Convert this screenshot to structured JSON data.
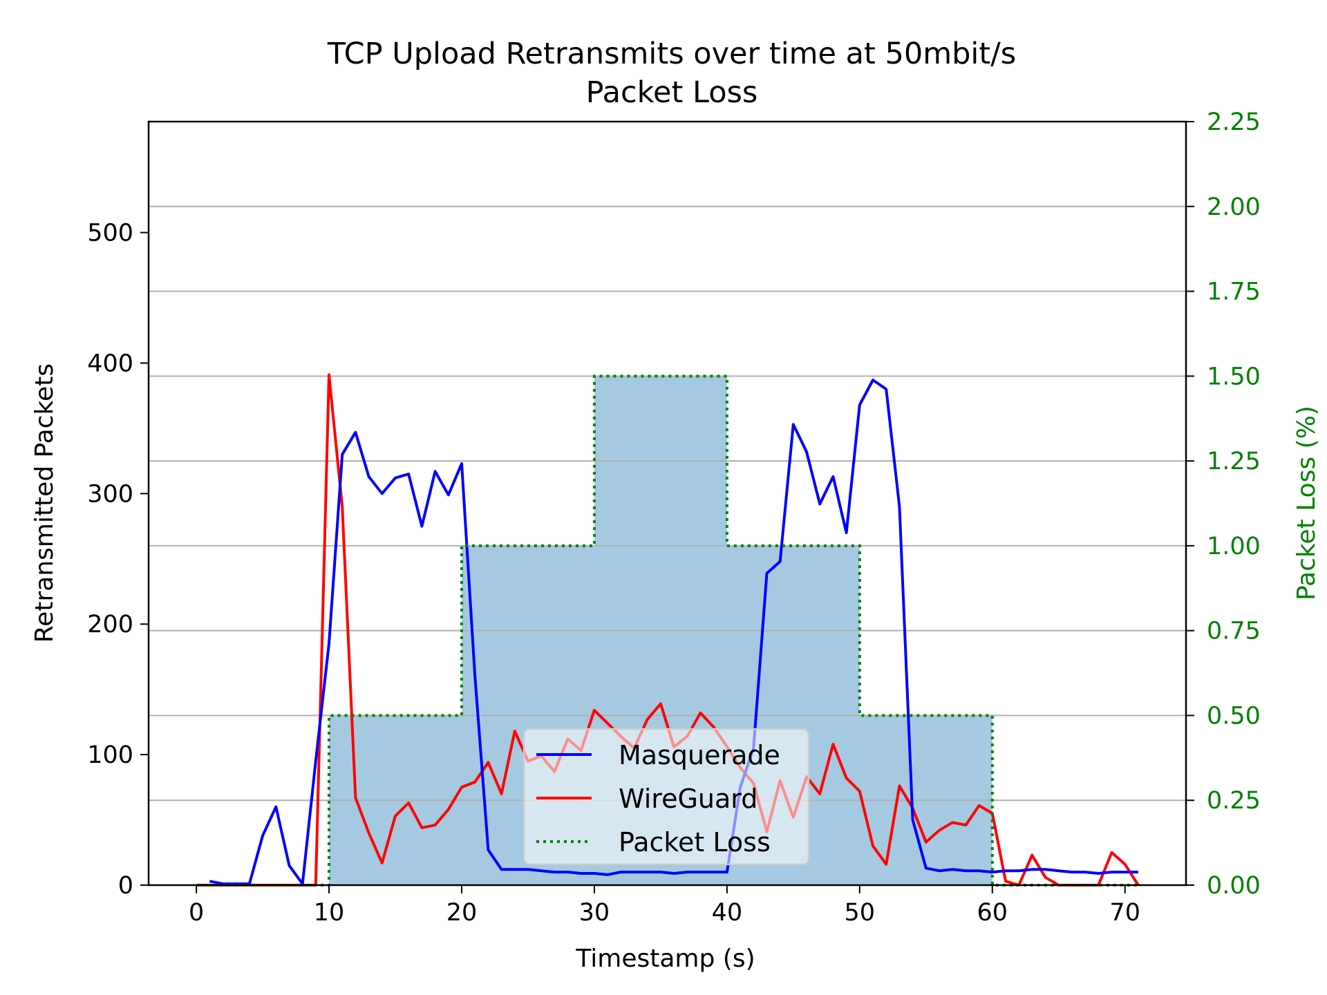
{
  "chart_data": {
    "type": "line",
    "title": "TCP Upload Retransmits over time at 50mbit/s",
    "subtitle": "Packet Loss",
    "xlabel": "Timestamp (s)",
    "ylabel": "Retransmitted Packets",
    "y2label": "Packet Loss (%)",
    "xlim": [
      -3.6,
      74.6
    ],
    "ylim": [
      0,
      585
    ],
    "y2lim": [
      0,
      2.25
    ],
    "x_ticks": [
      0,
      10,
      20,
      30,
      40,
      50,
      60,
      70
    ],
    "y_ticks": [
      0,
      100,
      200,
      300,
      400,
      500
    ],
    "y2_ticks": [
      0,
      0.25,
      0.5,
      0.75,
      1.0,
      1.25,
      1.5,
      1.75,
      2.0,
      2.25
    ],
    "y2_tick_labels": [
      "0.00",
      "0.25",
      "0.50",
      "0.75",
      "1.00",
      "1.25",
      "1.50",
      "1.75",
      "2.00",
      "2.25"
    ],
    "grid": "y2-major",
    "legend_position": "lower-center",
    "series": [
      {
        "name": "Masquerade",
        "color": "#0000ff",
        "x": [
          1,
          2,
          3,
          4,
          5,
          6,
          7,
          8,
          9,
          10,
          11,
          12,
          13,
          14,
          15,
          16,
          17,
          18,
          19,
          20,
          21,
          22,
          23,
          24,
          25,
          26,
          27,
          28,
          29,
          30,
          31,
          32,
          33,
          34,
          35,
          36,
          37,
          38,
          39,
          40,
          41,
          42,
          43,
          44,
          45,
          46,
          47,
          48,
          49,
          50,
          51,
          52,
          53,
          54,
          55,
          56,
          57,
          58,
          59,
          60,
          61,
          62,
          63,
          64,
          65,
          66,
          67,
          68,
          69,
          70,
          71
        ],
        "y": [
          3,
          1,
          1,
          1,
          38,
          60,
          15,
          1,
          95,
          185,
          330,
          347,
          313,
          300,
          312,
          315,
          275,
          317,
          299,
          323,
          160,
          27,
          12,
          12,
          12,
          11,
          10,
          10,
          9,
          9,
          8,
          10,
          10,
          10,
          10,
          9,
          10,
          10,
          10,
          10,
          75,
          105,
          239,
          248,
          353,
          332,
          292,
          313,
          270,
          368,
          387,
          380,
          290,
          50,
          13,
          11,
          12,
          11,
          11,
          10,
          11,
          11,
          12,
          12,
          11,
          10,
          10,
          9,
          10,
          10,
          10
        ]
      },
      {
        "name": "WireGuard",
        "color": "#ff0000",
        "x": [
          0,
          1,
          2,
          3,
          4,
          5,
          6,
          7,
          8,
          9,
          10,
          11,
          12,
          13,
          14,
          15,
          16,
          17,
          18,
          19,
          20,
          21,
          22,
          23,
          24,
          25,
          26,
          27,
          28,
          29,
          30,
          31,
          32,
          33,
          34,
          35,
          36,
          37,
          38,
          39,
          40,
          41,
          42,
          43,
          44,
          45,
          46,
          47,
          48,
          49,
          50,
          51,
          52,
          53,
          54,
          55,
          56,
          57,
          58,
          59,
          60,
          61,
          62,
          63,
          64,
          65,
          66,
          67,
          68,
          69,
          70,
          71
        ],
        "y": [
          0,
          0,
          0,
          0,
          0,
          0,
          0,
          0,
          0,
          0,
          391,
          290,
          67,
          40,
          17,
          53,
          63,
          44,
          46,
          58,
          75,
          79,
          94,
          70,
          118,
          95,
          99,
          87,
          112,
          103,
          134,
          124,
          114,
          105,
          127,
          139,
          106,
          114,
          132,
          121,
          106,
          90,
          78,
          41,
          80,
          52,
          83,
          70,
          108,
          82,
          72,
          30,
          16,
          76,
          59,
          33,
          42,
          48,
          46,
          61,
          55,
          3,
          0,
          23,
          6,
          0,
          0,
          0,
          0,
          25,
          16,
          0
        ]
      },
      {
        "name": "Packet Loss",
        "color": "#007f00",
        "axis": "right",
        "step": "post",
        "x": [
          0,
          10,
          20,
          30,
          40,
          50,
          60,
          70,
          71
        ],
        "y": [
          0,
          0.5,
          1.0,
          1.5,
          1.0,
          0.5,
          0,
          0,
          0
        ]
      }
    ],
    "legend": [
      "Masquerade",
      "WireGuard",
      "Packet Loss"
    ]
  }
}
